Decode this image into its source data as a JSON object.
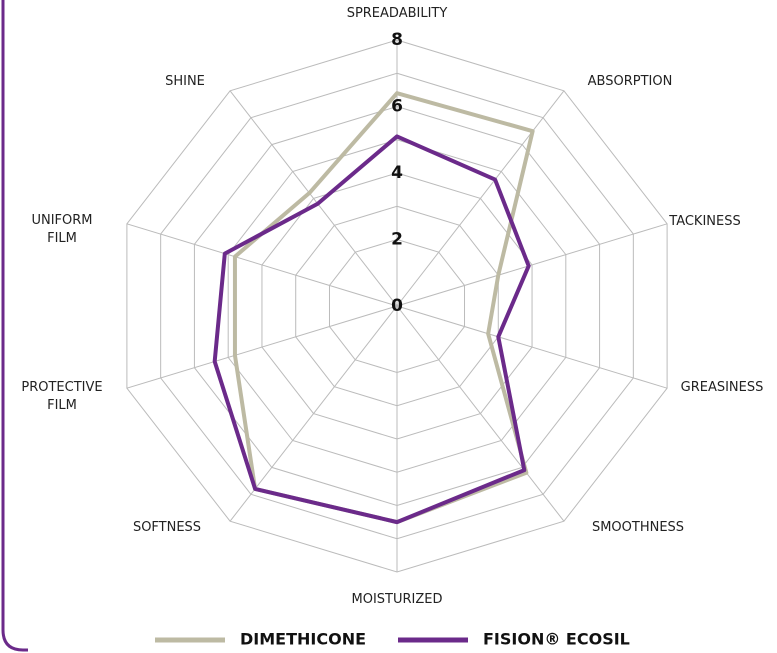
{
  "chart_data": {
    "type": "radar",
    "categories": [
      "SPREADABILITY",
      "ABSORPTION",
      "TACKINESS",
      "GREASINESS",
      "SMOOTHNESS",
      "MOISTURIZED",
      "SOFTNESS",
      "PROTECTIVE\nFILM",
      "UNIFORM\nFILM",
      "SHINE"
    ],
    "series": [
      {
        "name": "DIMETHICONE",
        "color": "#bdbaa3",
        "values": [
          6.4,
          6.5,
          3.0,
          2.7,
          6.2,
          6.5,
          6.8,
          4.8,
          4.8,
          4.2
        ]
      },
      {
        "name": "FISION® ECOSIL",
        "color": "#6b2a8a",
        "values": [
          5.1,
          4.7,
          3.9,
          3.0,
          6.1,
          6.5,
          6.8,
          5.4,
          5.1,
          3.8
        ]
      }
    ],
    "ylim": [
      0,
      8
    ],
    "yticks": [
      0,
      2,
      4,
      6,
      8
    ],
    "grid_rings": [
      2,
      3,
      4,
      5,
      6,
      7,
      8
    ],
    "grid": true
  }
}
